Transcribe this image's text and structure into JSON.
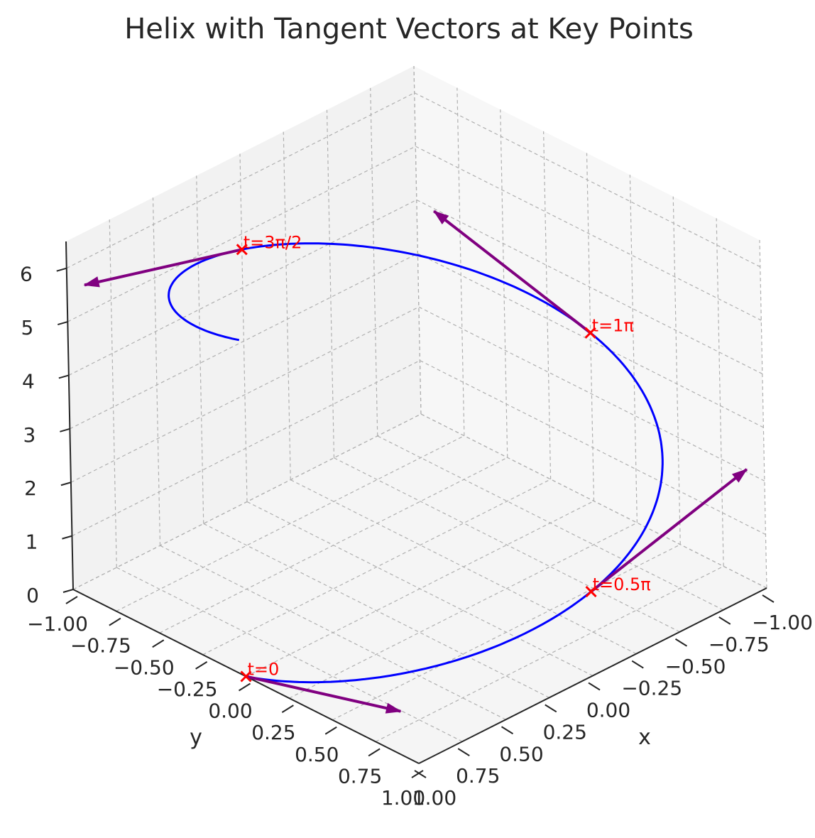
{
  "chart_data": {
    "type": "line3d",
    "title": "Helix with Tangent Vectors at Key Points",
    "xlabel": "x",
    "ylabel": "y",
    "zlabel": "",
    "xlim": [
      -1.0,
      1.0
    ],
    "ylim": [
      -1.0,
      1.0
    ],
    "zlim": [
      0,
      6.5
    ],
    "x_ticks": [
      "−1.00",
      "−0.75",
      "−0.50",
      "−0.25",
      "0.00",
      "0.25",
      "0.50",
      "0.75",
      "1.00"
    ],
    "y_ticks": [
      "−1.00",
      "−0.75",
      "−0.50",
      "−0.25",
      "0.00",
      "0.25",
      "0.50",
      "0.75",
      "1.00"
    ],
    "z_ticks": [
      "0",
      "1",
      "2",
      "3",
      "4",
      "5",
      "6"
    ],
    "grid": true,
    "series": [
      {
        "curve": "x = cos t, y = sin t, z = t",
        "t_range": [
          0,
          6.283
        ],
        "color": "#0000ff"
      }
    ],
    "key_points": [
      {
        "label": "t=0",
        "t": 0.0,
        "x": 1.0,
        "y": 0.0,
        "z": 0.0,
        "tangent": [
          0,
          1,
          1
        ]
      },
      {
        "label": "t=0.5π",
        "t": 1.571,
        "x": 0.0,
        "y": 1.0,
        "z": 1.571,
        "tangent": [
          -1,
          0,
          1
        ]
      },
      {
        "label": "t=1π",
        "t": 3.142,
        "x": -1.0,
        "y": 0.0,
        "z": 3.142,
        "tangent": [
          0,
          -1,
          1
        ]
      },
      {
        "label": "t=3π/2",
        "t": 4.712,
        "x": 0.0,
        "y": -1.0,
        "z": 4.712,
        "tangent": [
          1,
          0,
          1
        ]
      }
    ],
    "marker_color": "#ff0000",
    "tangent_color": "#800080",
    "pane_color": "#f2f2f2"
  }
}
